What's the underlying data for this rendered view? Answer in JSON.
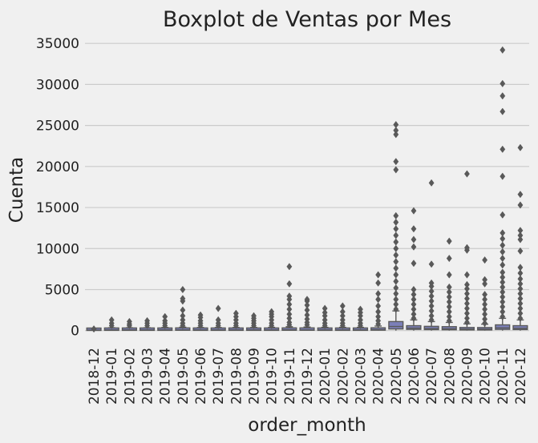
{
  "chart_data": {
    "type": "boxplot",
    "title": "Boxplot de Ventas por Mes",
    "xlabel": "order_month",
    "ylabel": "Cuenta",
    "ylim": [
      -1300,
      35800
    ],
    "yticks": [
      0,
      5000,
      10000,
      15000,
      20000,
      25000,
      30000,
      35000
    ],
    "grid": true,
    "box_color": "#7c80b9",
    "outlier_color": "#595959",
    "categories": [
      "2018-12",
      "2019-01",
      "2019-02",
      "2019-03",
      "2019-04",
      "2019-05",
      "2019-06",
      "2019-07",
      "2019-08",
      "2019-09",
      "2019-10",
      "2019-11",
      "2019-12",
      "2020-01",
      "2020-02",
      "2020-03",
      "2020-04",
      "2020-05",
      "2020-06",
      "2020-07",
      "2020-08",
      "2020-09",
      "2020-10",
      "2020-11",
      "2020-12"
    ],
    "boxes": [
      {
        "q1": 20,
        "median": 60,
        "q3": 130,
        "whisker_low": 0,
        "whisker_high": 280,
        "max_outlier": 200
      },
      {
        "q1": 30,
        "median": 80,
        "q3": 160,
        "whisker_low": 0,
        "whisker_high": 350,
        "max_outlier": 1300
      },
      {
        "q1": 30,
        "median": 80,
        "q3": 160,
        "whisker_low": 0,
        "whisker_high": 350,
        "max_outlier": 1100
      },
      {
        "q1": 30,
        "median": 80,
        "q3": 160,
        "whisker_low": 0,
        "whisker_high": 350,
        "max_outlier": 1200
      },
      {
        "q1": 30,
        "median": 80,
        "q3": 170,
        "whisker_low": 0,
        "whisker_high": 380,
        "max_outlier": 1700
      },
      {
        "q1": 40,
        "median": 90,
        "q3": 200,
        "whisker_low": 0,
        "whisker_high": 420,
        "max_outlier": 5000
      },
      {
        "q1": 30,
        "median": 80,
        "q3": 170,
        "whisker_low": 0,
        "whisker_high": 380,
        "max_outlier": 1900
      },
      {
        "q1": 30,
        "median": 80,
        "q3": 170,
        "whisker_low": 0,
        "whisker_high": 380,
        "max_outlier": 2700
      },
      {
        "q1": 30,
        "median": 80,
        "q3": 170,
        "whisker_low": 0,
        "whisker_high": 380,
        "max_outlier": 2100
      },
      {
        "q1": 30,
        "median": 80,
        "q3": 170,
        "whisker_low": 0,
        "whisker_high": 380,
        "max_outlier": 1800
      },
      {
        "q1": 30,
        "median": 80,
        "q3": 180,
        "whisker_low": 0,
        "whisker_high": 400,
        "max_outlier": 2300
      },
      {
        "q1": 40,
        "median": 100,
        "q3": 220,
        "whisker_low": 0,
        "whisker_high": 480,
        "max_outlier": 7800
      },
      {
        "q1": 40,
        "median": 90,
        "q3": 200,
        "whisker_low": 0,
        "whisker_high": 440,
        "max_outlier": 3800
      },
      {
        "q1": 30,
        "median": 80,
        "q3": 180,
        "whisker_low": 0,
        "whisker_high": 400,
        "max_outlier": 2700
      },
      {
        "q1": 30,
        "median": 80,
        "q3": 180,
        "whisker_low": 0,
        "whisker_high": 400,
        "max_outlier": 3000
      },
      {
        "q1": 30,
        "median": 80,
        "q3": 180,
        "whisker_low": 0,
        "whisker_high": 400,
        "max_outlier": 2600
      },
      {
        "q1": 50,
        "median": 120,
        "q3": 260,
        "whisker_low": 0,
        "whisker_high": 560,
        "max_outlier": 6800
      },
      {
        "q1": 200,
        "median": 500,
        "q3": 1100,
        "whisker_low": 0,
        "whisker_high": 2400,
        "max_outlier": 25100
      },
      {
        "q1": 150,
        "median": 300,
        "q3": 600,
        "whisker_low": 0,
        "whisker_high": 1300,
        "max_outlier": 14600
      },
      {
        "q1": 120,
        "median": 260,
        "q3": 520,
        "whisker_low": 0,
        "whisker_high": 1100,
        "max_outlier": 18000
      },
      {
        "q1": 100,
        "median": 220,
        "q3": 480,
        "whisker_low": 0,
        "whisker_high": 1000,
        "max_outlier": 10900
      },
      {
        "q1": 80,
        "median": 180,
        "q3": 380,
        "whisker_low": 0,
        "whisker_high": 820,
        "max_outlier": 19100
      },
      {
        "q1": 80,
        "median": 170,
        "q3": 360,
        "whisker_low": 0,
        "whisker_high": 780,
        "max_outlier": 8600
      },
      {
        "q1": 150,
        "median": 330,
        "q3": 700,
        "whisker_low": 0,
        "whisker_high": 1500,
        "max_outlier": 34200
      },
      {
        "q1": 130,
        "median": 280,
        "q3": 600,
        "whisker_low": 0,
        "whisker_high": 1300,
        "max_outlier": 22300
      }
    ],
    "outliers": [
      [
        200
      ],
      [
        600,
        900,
        1300
      ],
      [
        600,
        800,
        1100
      ],
      [
        600,
        900,
        1200
      ],
      [
        600,
        900,
        1200,
        1700
      ],
      [
        600,
        900,
        1300,
        1800,
        2500,
        3600,
        3900,
        5000
      ],
      [
        600,
        900,
        1200,
        1600,
        1900
      ],
      [
        600,
        900,
        1300,
        2700
      ],
      [
        600,
        900,
        1300,
        1700,
        2100
      ],
      [
        600,
        900,
        1200,
        1500,
        1800
      ],
      [
        600,
        900,
        1300,
        1700,
        2000,
        2300
      ],
      [
        700,
        1000,
        1500,
        2000,
        2600,
        3200,
        3800,
        4200,
        5700,
        7800
      ],
      [
        700,
        1000,
        1400,
        1900,
        2500,
        3100,
        3600,
        3800
      ],
      [
        600,
        900,
        1300,
        1800,
        2200,
        2700
      ],
      [
        600,
        900,
        1300,
        1800,
        2300,
        3000
      ],
      [
        600,
        900,
        1300,
        1800,
        2200,
        2600
      ],
      [
        800,
        1200,
        1700,
        2300,
        3000,
        3800,
        4500,
        5800,
        6800
      ],
      [
        2600,
        3200,
        3800,
        4500,
        5200,
        6000,
        6800,
        7600,
        8400,
        9200,
        10000,
        10800,
        11600,
        12400,
        13200,
        14000,
        19600,
        20600,
        23900,
        24400,
        25100
      ],
      [
        1500,
        2000,
        2600,
        3200,
        3800,
        4400,
        5000,
        8200,
        10200,
        11100,
        12400,
        14600
      ],
      [
        1300,
        1800,
        2400,
        3000,
        3600,
        4200,
        4800,
        5400,
        5800,
        8100,
        18000
      ],
      [
        1200,
        1700,
        2300,
        2900,
        3500,
        4100,
        4700,
        5300,
        6800,
        8800,
        10900
      ],
      [
        1000,
        1500,
        2100,
        2700,
        3300,
        3900,
        4500,
        5100,
        5600,
        6800,
        9800,
        10100,
        19100
      ],
      [
        900,
        1400,
        2000,
        2600,
        3200,
        3800,
        4400,
        5700,
        6200,
        8600
      ],
      [
        1700,
        2300,
        2900,
        3500,
        4100,
        4700,
        5300,
        5900,
        6500,
        7100,
        8000,
        8800,
        9600,
        10400,
        11200,
        11900,
        14100,
        18800,
        22100,
        26700,
        28600,
        30100,
        34200
      ],
      [
        1500,
        2100,
        2700,
        3300,
        3900,
        4500,
        5100,
        5700,
        6300,
        7000,
        7700,
        9700,
        11100,
        11600,
        12200,
        15300,
        16600,
        22300
      ]
    ]
  }
}
